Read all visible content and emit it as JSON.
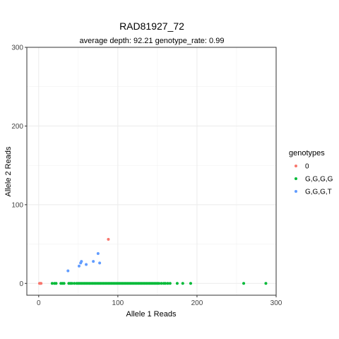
{
  "chart_data": {
    "type": "scatter",
    "title": "RAD81927_72",
    "subtitle": "average depth:  92.21  genotype_rate:  0.99",
    "xlabel": "Allele 1 Reads",
    "ylabel": "Allele 2 Reads",
    "xlim": [
      -15,
      300
    ],
    "ylim": [
      -15,
      300
    ],
    "xticks": [
      0,
      100,
      200,
      300
    ],
    "yticks": [
      0,
      100,
      200,
      300
    ],
    "grid": true,
    "legend_position": "right",
    "legend_title": "genotypes",
    "series": [
      {
        "name": "0",
        "color": "#F8766D",
        "points": [
          [
            1,
            0
          ],
          [
            2,
            0
          ],
          [
            3,
            0
          ],
          [
            88,
            56
          ]
        ]
      },
      {
        "name": "G,G,G,G",
        "color": "#00BA38",
        "points": [
          [
            17,
            0
          ],
          [
            20,
            0
          ],
          [
            22,
            0
          ],
          [
            28,
            0
          ],
          [
            30,
            0
          ],
          [
            32,
            0
          ],
          [
            38,
            0
          ],
          [
            40,
            0
          ],
          [
            42,
            0
          ],
          [
            45,
            0
          ],
          [
            48,
            0
          ],
          [
            50,
            0
          ],
          [
            52,
            0
          ],
          [
            54,
            0
          ],
          [
            56,
            0
          ],
          [
            58,
            0
          ],
          [
            60,
            0
          ],
          [
            62,
            0
          ],
          [
            64,
            0
          ],
          [
            66,
            0
          ],
          [
            68,
            0
          ],
          [
            70,
            0
          ],
          [
            72,
            0
          ],
          [
            74,
            0
          ],
          [
            76,
            0
          ],
          [
            78,
            0
          ],
          [
            80,
            0
          ],
          [
            82,
            0
          ],
          [
            84,
            0
          ],
          [
            86,
            0
          ],
          [
            88,
            0
          ],
          [
            90,
            0
          ],
          [
            92,
            0
          ],
          [
            94,
            0
          ],
          [
            96,
            0
          ],
          [
            98,
            0
          ],
          [
            100,
            0
          ],
          [
            102,
            0
          ],
          [
            104,
            0
          ],
          [
            106,
            0
          ],
          [
            108,
            0
          ],
          [
            110,
            0
          ],
          [
            112,
            0
          ],
          [
            114,
            0
          ],
          [
            116,
            0
          ],
          [
            118,
            0
          ],
          [
            120,
            0
          ],
          [
            122,
            0
          ],
          [
            124,
            0
          ],
          [
            126,
            0
          ],
          [
            128,
            0
          ],
          [
            130,
            0
          ],
          [
            132,
            0
          ],
          [
            134,
            0
          ],
          [
            136,
            0
          ],
          [
            138,
            0
          ],
          [
            140,
            0
          ],
          [
            142,
            0
          ],
          [
            144,
            0
          ],
          [
            146,
            0
          ],
          [
            148,
            0
          ],
          [
            150,
            0
          ],
          [
            152,
            0
          ],
          [
            155,
            0
          ],
          [
            158,
            0
          ],
          [
            160,
            0
          ],
          [
            163,
            0
          ],
          [
            166,
            0
          ],
          [
            175,
            0
          ],
          [
            182,
            0
          ],
          [
            192,
            0
          ],
          [
            259,
            0
          ],
          [
            287,
            0
          ]
        ]
      },
      {
        "name": "G,G,G,T",
        "color": "#619CFF",
        "points": [
          [
            37,
            16
          ],
          [
            51,
            22
          ],
          [
            53,
            26
          ],
          [
            54,
            28
          ],
          [
            60,
            24
          ],
          [
            69,
            28
          ],
          [
            75,
            38
          ],
          [
            77,
            26
          ]
        ]
      }
    ]
  }
}
